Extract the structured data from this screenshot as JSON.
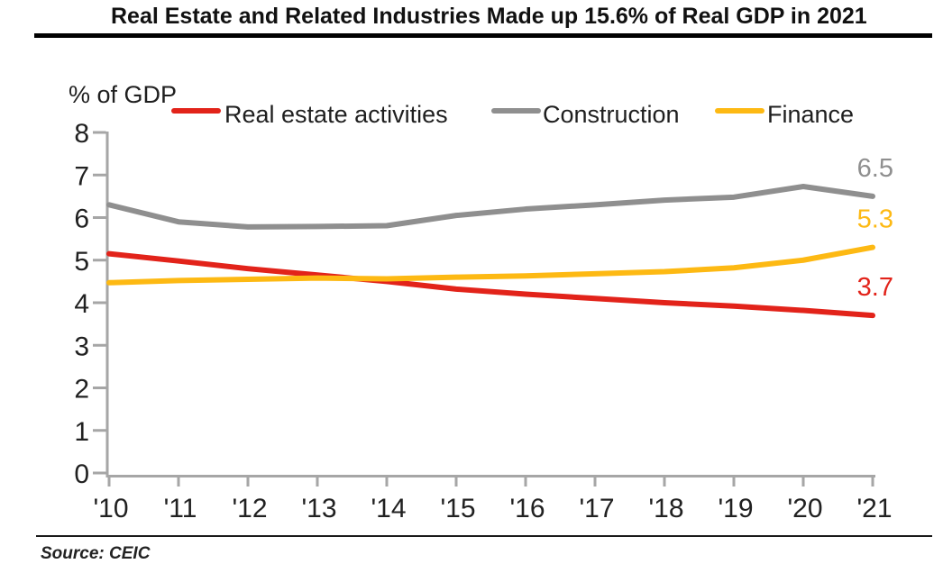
{
  "header": {
    "title": "Real Estate and Related Industries Made up 15.6% of Real GDP in 2021"
  },
  "footer": {
    "source": "Source: CEIC"
  },
  "chart_data": {
    "type": "line",
    "title": "Real Estate and Related Industries Made up 15.6% of Real GDP in 2021",
    "ylabel": "% of GDP",
    "xlabel": "",
    "categories": [
      "'10",
      "'11",
      "'12",
      "'13",
      "'14",
      "'15",
      "'16",
      "'17",
      "'18",
      "'19",
      "'20",
      "'21"
    ],
    "ylim": [
      0,
      8
    ],
    "y_ticks": [
      0,
      1,
      2,
      3,
      4,
      5,
      6,
      7,
      8
    ],
    "grid": false,
    "legend_position": "top",
    "axis_color": "#a6a6a6",
    "text_color": "#212121",
    "series": [
      {
        "name": "Real estate activities",
        "color": "#e2231a",
        "end_label": "3.7",
        "values": [
          5.15,
          4.98,
          4.8,
          4.65,
          4.5,
          4.32,
          4.2,
          4.1,
          4.0,
          3.92,
          3.82,
          3.7
        ]
      },
      {
        "name": "Construction",
        "color": "#8f8f8f",
        "end_label": "6.5",
        "values": [
          6.3,
          5.9,
          5.78,
          5.79,
          5.81,
          6.05,
          6.2,
          6.3,
          6.41,
          6.48,
          6.73,
          6.5
        ]
      },
      {
        "name": "Finance",
        "color": "#fdb913",
        "end_label": "5.3",
        "values": [
          4.47,
          4.52,
          4.55,
          4.58,
          4.56,
          4.6,
          4.63,
          4.68,
          4.73,
          4.82,
          5.0,
          5.3
        ]
      }
    ]
  }
}
